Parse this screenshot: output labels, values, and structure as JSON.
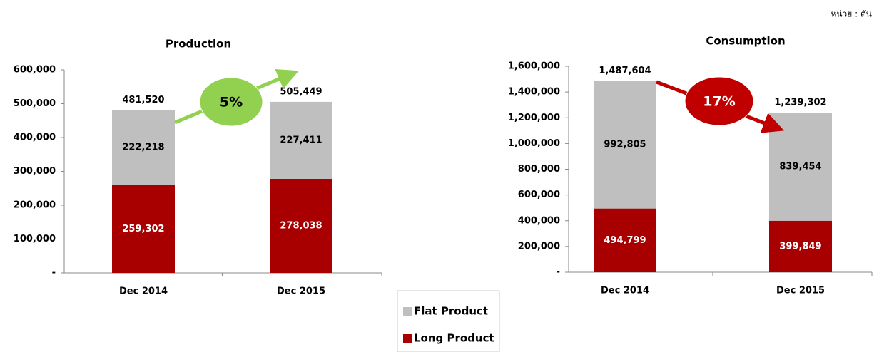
{
  "unit": "หน่วย : ตัน",
  "chart_data": [
    {
      "type": "stacked_bar",
      "title": "Production",
      "categories": [
        "Dec 2014",
        "Dec 2015"
      ],
      "series": [
        {
          "name": "Long Product",
          "color": "#a80000",
          "values": [
            259302,
            278038
          ],
          "value_labels": [
            "259,302",
            "278,038"
          ]
        },
        {
          "name": "Flat Product",
          "color": "#bfbfbf",
          "values": [
            222218,
            227411
          ],
          "value_labels": [
            "222,218",
            "227,411"
          ]
        }
      ],
      "totals": [
        481520,
        505449
      ],
      "total_labels": [
        "481,520",
        "505,449"
      ],
      "annotation": "5%",
      "annotation_color": "#92d050",
      "ylim": [
        0,
        600000
      ],
      "yticks": [
        {
          "value": 0,
          "label": "-"
        },
        {
          "value": 100000,
          "label": "100,000"
        },
        {
          "value": 200000,
          "label": "200,000"
        },
        {
          "value": 300000,
          "label": "300,000"
        },
        {
          "value": 400000,
          "label": "400,000"
        },
        {
          "value": 500000,
          "label": "500,000"
        },
        {
          "value": 600000,
          "label": "600,000"
        }
      ]
    },
    {
      "type": "stacked_bar",
      "title": "Consumption",
      "categories": [
        "Dec 2014",
        "Dec 2015"
      ],
      "series": [
        {
          "name": "Long Product",
          "color": "#a80000",
          "values": [
            494799,
            399849
          ],
          "value_labels": [
            "494,799",
            "399,849"
          ]
        },
        {
          "name": "Flat Product",
          "color": "#bfbfbf",
          "values": [
            992805,
            839454
          ],
          "value_labels": [
            "992,805",
            "839,454"
          ]
        }
      ],
      "totals": [
        1487604,
        1239302
      ],
      "total_labels": [
        "1,487,604",
        "1,239,302"
      ],
      "annotation": "17%",
      "annotation_color": "#c00000",
      "ylim": [
        0,
        1600000
      ],
      "yticks": [
        {
          "value": 0,
          "label": "-"
        },
        {
          "value": 200000,
          "label": "200,000"
        },
        {
          "value": 400000,
          "label": "400,000"
        },
        {
          "value": 600000,
          "label": "600,000"
        },
        {
          "value": 800000,
          "label": "800,000"
        },
        {
          "value": 1000000,
          "label": "1,000,000"
        },
        {
          "value": 1200000,
          "label": "1,200,000"
        },
        {
          "value": 1400000,
          "label": "1,400,000"
        },
        {
          "value": 1600000,
          "label": "1,600,000"
        }
      ]
    }
  ]
}
